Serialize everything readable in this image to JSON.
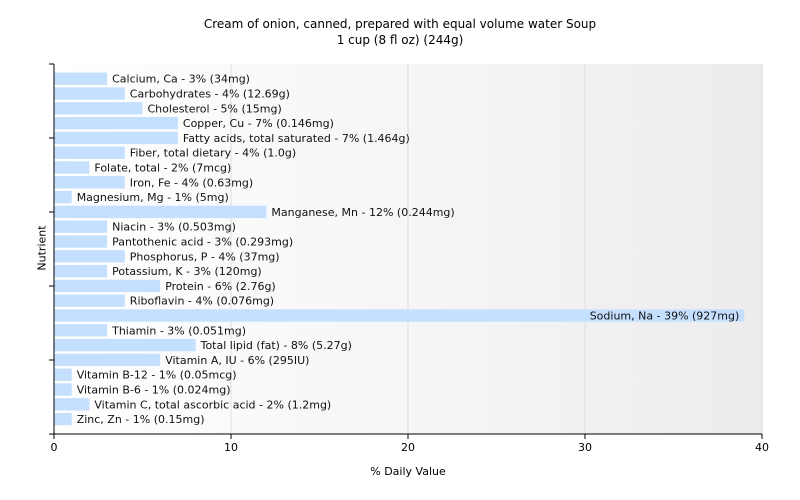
{
  "chart_data": {
    "type": "bar",
    "orientation": "horizontal",
    "title": "Cream of onion, canned, prepared with equal volume water Soup",
    "subtitle": "1 cup (8 fl oz) (244g)",
    "xlabel": "% Daily Value",
    "ylabel": "Nutrient",
    "xlim": [
      0,
      40
    ],
    "xticks": [
      0,
      10,
      20,
      30,
      40
    ],
    "grid": true,
    "bar_color": "#c5e0ff",
    "categories": [
      "Calcium, Ca - 3% (34mg)",
      "Carbohydrates - 4% (12.69g)",
      "Cholesterol - 5% (15mg)",
      "Copper, Cu - 7% (0.146mg)",
      "Fatty acids, total saturated - 7% (1.464g)",
      "Fiber, total dietary - 4% (1.0g)",
      "Folate, total - 2% (7mcg)",
      "Iron, Fe - 4% (0.63mg)",
      "Magnesium, Mg - 1% (5mg)",
      "Manganese, Mn - 12% (0.244mg)",
      "Niacin - 3% (0.503mg)",
      "Pantothenic acid - 3% (0.293mg)",
      "Phosphorus, P - 4% (37mg)",
      "Potassium, K - 3% (120mg)",
      "Protein - 6% (2.76g)",
      "Riboflavin - 4% (0.076mg)",
      "Sodium, Na - 39% (927mg)",
      "Thiamin - 3% (0.051mg)",
      "Total lipid (fat) - 8% (5.27g)",
      "Vitamin A, IU - 6% (295IU)",
      "Vitamin B-12 - 1% (0.05mcg)",
      "Vitamin B-6 - 1% (0.024mg)",
      "Vitamin C, total ascorbic acid - 2% (1.2mg)",
      "Zinc, Zn - 1% (0.15mg)"
    ],
    "values": [
      3,
      4,
      5,
      7,
      7,
      4,
      2,
      4,
      1,
      12,
      3,
      3,
      4,
      3,
      6,
      4,
      39,
      3,
      8,
      6,
      1,
      1,
      2,
      1
    ]
  }
}
